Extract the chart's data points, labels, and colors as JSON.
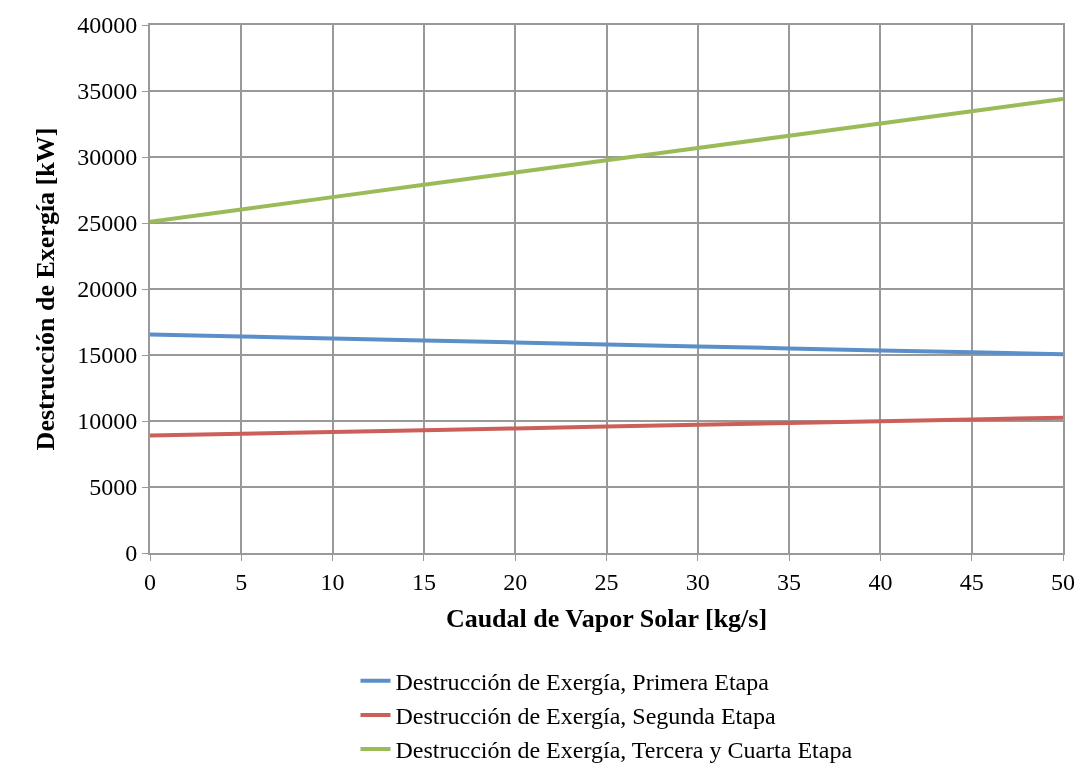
{
  "chart_data": {
    "type": "line",
    "xlabel": "Caudal de Vapor Solar [kg/s]",
    "ylabel": "Destrucción de Exergía [kW]",
    "x": [
      0,
      5,
      10,
      15,
      20,
      25,
      30,
      35,
      40,
      45,
      50
    ],
    "series": [
      {
        "name": "Destrucción de Exergía, Primera Etapa",
        "color": "#5b8fc9",
        "values": [
          16550,
          16400,
          16250,
          16100,
          15950,
          15800,
          15650,
          15500,
          15350,
          15200,
          15050
        ]
      },
      {
        "name": "Destrucción de Exergía, Segunda Etapa",
        "color": "#cc5f5a",
        "values": [
          8900,
          9035,
          9170,
          9305,
          9440,
          9575,
          9710,
          9845,
          9980,
          10115,
          10250
        ]
      },
      {
        "name": "Destrucción de Exergía, Tercera y Cuarta Etapa",
        "color": "#9bbb59",
        "values": [
          25100,
          26030,
          26960,
          27890,
          28820,
          29750,
          30680,
          31610,
          32540,
          33470,
          34400
        ]
      }
    ],
    "xlim": [
      0,
      50
    ],
    "xticks": [
      0,
      5,
      10,
      15,
      20,
      25,
      30,
      35,
      40,
      45,
      50
    ],
    "ylim": [
      0,
      40000
    ],
    "yticks": [
      0,
      5000,
      10000,
      15000,
      20000,
      25000,
      30000,
      35000,
      40000
    ],
    "grid": true,
    "legend": "bottom",
    "marker": "none",
    "line_style": "solid"
  }
}
